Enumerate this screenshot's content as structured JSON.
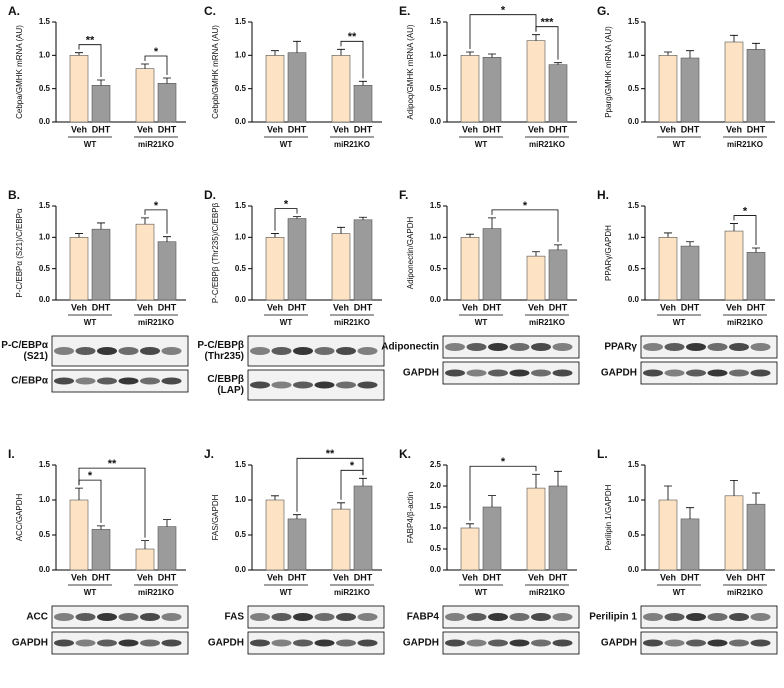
{
  "chart_data": [
    {
      "type": "bar",
      "panel": "A.",
      "ylabel": "Cebpa/GMHK mRNA (AU)",
      "categories": [
        "Veh",
        "DHT",
        "Veh",
        "DHT"
      ],
      "groups": [
        "WT",
        "miR21KO"
      ],
      "values": [
        1.0,
        0.55,
        0.8,
        0.58
      ],
      "errors": [
        0.04,
        0.08,
        0.07,
        0.08
      ],
      "colors": [
        "#fde3c4",
        "#9b9b9b",
        "#fde3c4",
        "#9b9b9b"
      ],
      "ylim": [
        0,
        1.5
      ],
      "yticks": [
        {
          "value": 0,
          "label": "0.0"
        },
        {
          "value": 0.5,
          "label": "0.5"
        },
        {
          "value": 1,
          "label": "1.0"
        },
        {
          "value": 1.5,
          "label": "1.5"
        }
      ],
      "significance": [
        {
          "label": "**",
          "bars": [
            0,
            1
          ]
        },
        {
          "label": "*",
          "bars": [
            2,
            3
          ]
        }
      ]
    },
    {
      "type": "bar",
      "panel": "C.",
      "ylabel": "Cebpb/GMHK mRNA (AU)",
      "categories": [
        "Veh",
        "DHT",
        "Veh",
        "DHT"
      ],
      "groups": [
        "WT",
        "miR21KO"
      ],
      "values": [
        1.0,
        1.04,
        1.0,
        0.55
      ],
      "errors": [
        0.07,
        0.17,
        0.09,
        0.06
      ],
      "colors": [
        "#fde3c4",
        "#9b9b9b",
        "#fde3c4",
        "#9b9b9b"
      ],
      "ylim": [
        0,
        1.5
      ],
      "yticks": [
        {
          "value": 0,
          "label": "0.0"
        },
        {
          "value": 0.5,
          "label": "0.5"
        },
        {
          "value": 1,
          "label": "1.0"
        },
        {
          "value": 1.5,
          "label": "1.5"
        }
      ],
      "significance": [
        {
          "label": "**",
          "bars": [
            2,
            3
          ]
        }
      ]
    },
    {
      "type": "bar",
      "panel": "E.",
      "ylabel": "Adipoq/GMHK mRNA (AU)",
      "categories": [
        "Veh",
        "DHT",
        "Veh",
        "DHT"
      ],
      "groups": [
        "WT",
        "miR21KO"
      ],
      "values": [
        1.0,
        0.97,
        1.22,
        0.86
      ],
      "errors": [
        0.05,
        0.05,
        0.09,
        0.03
      ],
      "colors": [
        "#fde3c4",
        "#9b9b9b",
        "#fde3c4",
        "#9b9b9b"
      ],
      "ylim": [
        0,
        1.5
      ],
      "yticks": [
        {
          "value": 0,
          "label": "0.0"
        },
        {
          "value": 0.5,
          "label": "0.5"
        },
        {
          "value": 1,
          "label": "1.0"
        },
        {
          "value": 1.5,
          "label": "1.5"
        }
      ],
      "significance": [
        {
          "label": "***",
          "bars": [
            2,
            3
          ]
        },
        {
          "label": "*",
          "bars": [
            0,
            2
          ]
        }
      ]
    },
    {
      "type": "bar",
      "panel": "G.",
      "ylabel": "Pparg/GMHK mRNA (AU)",
      "categories": [
        "Veh",
        "DHT",
        "Veh",
        "DHT"
      ],
      "groups": [
        "WT",
        "miR21KO"
      ],
      "values": [
        1.0,
        0.96,
        1.2,
        1.09
      ],
      "errors": [
        0.05,
        0.11,
        0.1,
        0.09
      ],
      "colors": [
        "#fde3c4",
        "#9b9b9b",
        "#fde3c4",
        "#9b9b9b"
      ],
      "ylim": [
        0,
        1.5
      ],
      "yticks": [
        {
          "value": 0,
          "label": "0.0"
        },
        {
          "value": 0.5,
          "label": "0.5"
        },
        {
          "value": 1,
          "label": "1.0"
        },
        {
          "value": 1.5,
          "label": "1.5"
        }
      ],
      "significance": []
    },
    {
      "type": "bar",
      "panel": "B.",
      "ylabel": "P-C/EBPα (S21)/C/EBPα",
      "categories": [
        "Veh",
        "DHT",
        "Veh",
        "DHT"
      ],
      "groups": [
        "WT",
        "miR21KO"
      ],
      "values": [
        1.0,
        1.13,
        1.21,
        0.93
      ],
      "errors": [
        0.06,
        0.1,
        0.1,
        0.08
      ],
      "colors": [
        "#fde3c4",
        "#9b9b9b",
        "#fde3c4",
        "#9b9b9b"
      ],
      "ylim": [
        0,
        1.5
      ],
      "yticks": [
        {
          "value": 0,
          "label": "0.0"
        },
        {
          "value": 0.5,
          "label": "0.5"
        },
        {
          "value": 1,
          "label": "1.0"
        },
        {
          "value": 1.5,
          "label": "1.5"
        }
      ],
      "significance": [
        {
          "label": "*",
          "bars": [
            2,
            3
          ]
        }
      ],
      "blots": [
        [
          "P-C/EBPα",
          "(S21)"
        ],
        [
          "C/EBPα"
        ]
      ]
    },
    {
      "type": "bar",
      "panel": "D.",
      "ylabel": "P-C/EBPβ (Thr235)/C/EBPβ",
      "categories": [
        "Veh",
        "DHT",
        "Veh",
        "DHT"
      ],
      "groups": [
        "WT",
        "miR21KO"
      ],
      "values": [
        1.0,
        1.3,
        1.06,
        1.28
      ],
      "errors": [
        0.06,
        0.03,
        0.1,
        0.04
      ],
      "colors": [
        "#fde3c4",
        "#9b9b9b",
        "#fde3c4",
        "#9b9b9b"
      ],
      "ylim": [
        0,
        1.5
      ],
      "yticks": [
        {
          "value": 0,
          "label": "0.0"
        },
        {
          "value": 0.5,
          "label": "0.5"
        },
        {
          "value": 1,
          "label": "1.0"
        },
        {
          "value": 1.5,
          "label": "1.5"
        }
      ],
      "significance": [
        {
          "label": "*",
          "bars": [
            0,
            1
          ]
        }
      ],
      "blots": [
        [
          "P-C/EBPβ",
          "(Thr235)"
        ],
        [
          "C/EBPβ",
          "(LAP)"
        ]
      ]
    },
    {
      "type": "bar",
      "panel": "F.",
      "ylabel": "Adiponectin/GAPDH",
      "categories": [
        "Veh",
        "DHT",
        "Veh",
        "DHT"
      ],
      "groups": [
        "WT",
        "miR21KO"
      ],
      "values": [
        1.0,
        1.14,
        0.7,
        0.8
      ],
      "errors": [
        0.05,
        0.17,
        0.07,
        0.08
      ],
      "colors": [
        "#fde3c4",
        "#9b9b9b",
        "#fde3c4",
        "#9b9b9b"
      ],
      "ylim": [
        0,
        1.5
      ],
      "yticks": [
        {
          "value": 0,
          "label": "0.0"
        },
        {
          "value": 0.5,
          "label": "0.5"
        },
        {
          "value": 1,
          "label": "1.0"
        },
        {
          "value": 1.5,
          "label": "1.5"
        }
      ],
      "significance": [
        {
          "label": "*",
          "bars": [
            1,
            3
          ]
        }
      ],
      "blots": [
        [
          "Adiponectin"
        ],
        [
          "GAPDH"
        ]
      ]
    },
    {
      "type": "bar",
      "panel": "H.",
      "ylabel": "PPARγ/GAPDH",
      "categories": [
        "Veh",
        "DHT",
        "Veh",
        "DHT"
      ],
      "groups": [
        "WT",
        "miR21KO"
      ],
      "values": [
        1.0,
        0.86,
        1.1,
        0.76
      ],
      "errors": [
        0.07,
        0.07,
        0.12,
        0.07
      ],
      "colors": [
        "#fde3c4",
        "#9b9b9b",
        "#fde3c4",
        "#9b9b9b"
      ],
      "ylim": [
        0,
        1.5
      ],
      "yticks": [
        {
          "value": 0,
          "label": "0.0"
        },
        {
          "value": 0.5,
          "label": "0.5"
        },
        {
          "value": 1,
          "label": "1.0"
        },
        {
          "value": 1.5,
          "label": "1.5"
        }
      ],
      "significance": [
        {
          "label": "*",
          "bars": [
            2,
            3
          ]
        }
      ],
      "blots": [
        [
          "PPARγ"
        ],
        [
          "GAPDH"
        ]
      ]
    },
    {
      "type": "bar",
      "panel": "I.",
      "ylabel": "ACC/GAPDH",
      "categories": [
        "Veh",
        "DHT",
        "Veh",
        "DHT"
      ],
      "groups": [
        "WT",
        "miR21KO"
      ],
      "values": [
        1.0,
        0.58,
        0.3,
        0.62
      ],
      "errors": [
        0.17,
        0.05,
        0.12,
        0.1
      ],
      "colors": [
        "#fde3c4",
        "#9b9b9b",
        "#fde3c4",
        "#9b9b9b"
      ],
      "ylim": [
        0,
        1.5
      ],
      "yticks": [
        {
          "value": 0,
          "label": "0.0"
        },
        {
          "value": 0.5,
          "label": "0.5"
        },
        {
          "value": 1,
          "label": "1.0"
        },
        {
          "value": 1.5,
          "label": "1.5"
        }
      ],
      "significance": [
        {
          "label": "*",
          "bars": [
            0,
            1
          ]
        },
        {
          "label": "**",
          "bars": [
            0,
            2
          ]
        }
      ],
      "blots": [
        [
          "ACC"
        ],
        [
          "GAPDH"
        ]
      ]
    },
    {
      "type": "bar",
      "panel": "J.",
      "ylabel": "FAS/GAPDH",
      "categories": [
        "Veh",
        "DHT",
        "Veh",
        "DHT"
      ],
      "groups": [
        "WT",
        "miR21KO"
      ],
      "values": [
        1.0,
        0.73,
        0.87,
        1.2
      ],
      "errors": [
        0.06,
        0.06,
        0.09,
        0.11
      ],
      "colors": [
        "#fde3c4",
        "#9b9b9b",
        "#fde3c4",
        "#9b9b9b"
      ],
      "ylim": [
        0,
        1.5
      ],
      "yticks": [
        {
          "value": 0,
          "label": "0.0"
        },
        {
          "value": 0.5,
          "label": "0.5"
        },
        {
          "value": 1,
          "label": "1.0"
        },
        {
          "value": 1.5,
          "label": "1.5"
        }
      ],
      "significance": [
        {
          "label": "*",
          "bars": [
            2,
            3
          ]
        },
        {
          "label": "**",
          "bars": [
            1,
            3
          ]
        }
      ],
      "blots": [
        [
          "FAS"
        ],
        [
          "GAPDH"
        ]
      ]
    },
    {
      "type": "bar",
      "panel": "K.",
      "ylabel": "FABP4/β-actin",
      "categories": [
        "Veh",
        "DHT",
        "Veh",
        "DHT"
      ],
      "groups": [
        "WT",
        "miR21KO"
      ],
      "values": [
        1.0,
        1.5,
        1.95,
        2.0
      ],
      "errors": [
        0.1,
        0.27,
        0.33,
        0.35
      ],
      "colors": [
        "#fde3c4",
        "#9b9b9b",
        "#fde3c4",
        "#9b9b9b"
      ],
      "ylim": [
        0,
        2.5
      ],
      "yticks": [
        {
          "value": 0,
          "label": "0.0"
        },
        {
          "value": 0.5,
          "label": "0.5"
        },
        {
          "value": 1,
          "label": "1.0"
        },
        {
          "value": 1.5,
          "label": "1.5"
        },
        {
          "value": 2,
          "label": "2.0"
        },
        {
          "value": 2.5,
          "label": "2.5"
        }
      ],
      "significance": [
        {
          "label": "*",
          "bars": [
            0,
            2
          ]
        }
      ],
      "blots": [
        [
          "FABP4"
        ],
        [
          "GAPDH"
        ]
      ]
    },
    {
      "type": "bar",
      "panel": "L.",
      "ylabel": "Perilipin 1/GAPDH",
      "categories": [
        "Veh",
        "DHT",
        "Veh",
        "DHT"
      ],
      "groups": [
        "WT",
        "miR21KO"
      ],
      "values": [
        1.0,
        0.73,
        1.06,
        0.94
      ],
      "errors": [
        0.2,
        0.16,
        0.22,
        0.16
      ],
      "colors": [
        "#fde3c4",
        "#9b9b9b",
        "#fde3c4",
        "#9b9b9b"
      ],
      "ylim": [
        0,
        1.5
      ],
      "yticks": [
        {
          "value": 0,
          "label": "0.0"
        },
        {
          "value": 0.5,
          "label": "0.5"
        },
        {
          "value": 1,
          "label": "1.0"
        },
        {
          "value": 1.5,
          "label": "1.5"
        }
      ],
      "significance": [],
      "blots": [
        [
          "Perilipin 1"
        ],
        [
          "GAPDH"
        ]
      ]
    }
  ]
}
